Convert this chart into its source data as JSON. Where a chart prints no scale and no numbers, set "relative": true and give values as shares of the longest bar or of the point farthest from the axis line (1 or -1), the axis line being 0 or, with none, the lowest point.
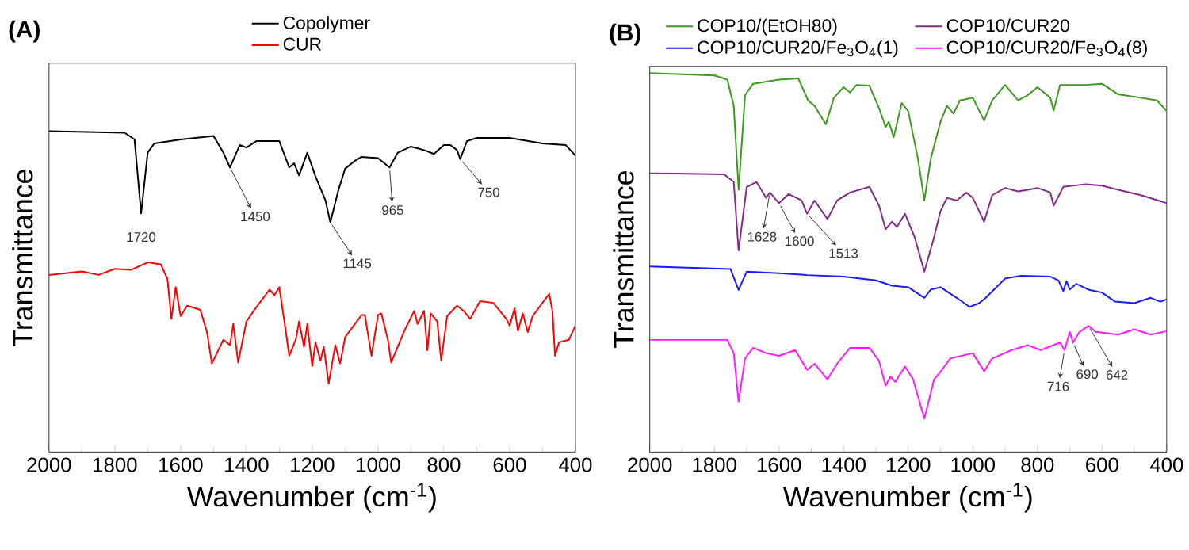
{
  "chart_data": [
    {
      "type": "line",
      "relative": true,
      "title": "(A)",
      "xlabel": "Wavenumber (cm$^{-1}$)",
      "ylabel": "Transmittance",
      "xlim": [
        2000,
        400
      ],
      "xticks": [
        2000,
        1800,
        1600,
        1400,
        1200,
        1000,
        800,
        600,
        400
      ],
      "legend": "top",
      "series": [
        {
          "name": "Copolymer",
          "color": "#000000",
          "x": [
            2000,
            1770,
            1740,
            1720,
            1700,
            1680,
            1600,
            1500,
            1470,
            1450,
            1420,
            1400,
            1370,
            1300,
            1270,
            1255,
            1240,
            1215,
            1190,
            1160,
            1145,
            1120,
            1100,
            1070,
            1050,
            1000,
            965,
            940,
            900,
            860,
            830,
            800,
            780,
            760,
            750,
            730,
            700,
            600,
            500,
            430,
            400
          ],
          "values": [
            1.0,
            0.995,
            0.974,
            0.744,
            0.933,
            0.962,
            0.974,
            0.985,
            0.933,
            0.887,
            0.957,
            0.949,
            0.969,
            0.969,
            0.887,
            0.9,
            0.862,
            0.933,
            0.859,
            0.785,
            0.716,
            0.818,
            0.883,
            0.908,
            0.92,
            0.916,
            0.887,
            0.933,
            0.952,
            0.941,
            0.929,
            0.957,
            0.957,
            0.941,
            0.913,
            0.969,
            0.979,
            0.979,
            0.962,
            0.957,
            0.924
          ]
        },
        {
          "name": "CUR",
          "color": "#ff0000",
          "x": [
            2000,
            1900,
            1850,
            1800,
            1750,
            1700,
            1660,
            1640,
            1628,
            1615,
            1600,
            1580,
            1540,
            1520,
            1505,
            1470,
            1450,
            1440,
            1425,
            1400,
            1380,
            1330,
            1315,
            1300,
            1280,
            1270,
            1250,
            1240,
            1225,
            1215,
            1200,
            1190,
            1175,
            1165,
            1150,
            1130,
            1115,
            1100,
            1050,
            1040,
            1020,
            1000,
            990,
            970,
            960,
            920,
            890,
            880,
            860,
            850,
            840,
            820,
            808,
            790,
            760,
            740,
            720,
            690,
            650,
            610,
            600,
            585,
            575,
            560,
            545,
            530,
            480,
            470,
            462,
            450,
            420,
            400
          ],
          "values": [
            0.552,
            0.563,
            0.552,
            0.571,
            0.568,
            0.591,
            0.585,
            0.539,
            0.415,
            0.514,
            0.424,
            0.456,
            0.443,
            0.374,
            0.276,
            0.35,
            0.333,
            0.399,
            0.279,
            0.407,
            0.437,
            0.506,
            0.489,
            0.514,
            0.374,
            0.3,
            0.35,
            0.407,
            0.328,
            0.399,
            0.268,
            0.342,
            0.284,
            0.328,
            0.213,
            0.333,
            0.276,
            0.358,
            0.427,
            0.427,
            0.3,
            0.427,
            0.432,
            0.35,
            0.279,
            0.378,
            0.44,
            0.399,
            0.44,
            0.317,
            0.432,
            0.407,
            0.284,
            0.424,
            0.456,
            0.44,
            0.415,
            0.47,
            0.465,
            0.415,
            0.394,
            0.448,
            0.378,
            0.432,
            0.374,
            0.424,
            0.493,
            0.44,
            0.3,
            0.342,
            0.35,
            0.394
          ]
        }
      ],
      "annotations": [
        {
          "text": "1720",
          "x": 1720,
          "y": 0.744
        },
        {
          "text": "1450",
          "x": 1450,
          "y": 0.887
        },
        {
          "text": "1145",
          "x": 1145,
          "y": 0.716
        },
        {
          "text": "965",
          "x": 965,
          "y": 0.887
        },
        {
          "text": "750",
          "x": 750,
          "y": 0.913
        }
      ]
    },
    {
      "type": "line",
      "relative": true,
      "title": "(B)",
      "xlabel": "Wavenumber (cm$^{-1}$)",
      "ylabel": "Transmittance",
      "xlim": [
        2000,
        400
      ],
      "xticks": [
        2000,
        1800,
        1600,
        1400,
        1200,
        1000,
        800,
        600,
        400
      ],
      "legend": "top",
      "series": [
        {
          "name": "COP10/(EtOH80)",
          "color": "#3c9a1e",
          "x": [
            2000,
            1800,
            1760,
            1740,
            1725,
            1705,
            1680,
            1600,
            1540,
            1510,
            1490,
            1455,
            1430,
            1400,
            1380,
            1360,
            1320,
            1290,
            1270,
            1260,
            1245,
            1220,
            1200,
            1170,
            1150,
            1130,
            1100,
            1080,
            1060,
            1040,
            1000,
            965,
            940,
            900,
            860,
            830,
            800,
            760,
            750,
            730,
            650,
            600,
            550,
            480,
            430,
            400
          ],
          "values": [
            1.0,
            0.994,
            0.983,
            0.914,
            0.692,
            0.942,
            0.972,
            0.983,
            0.986,
            0.928,
            0.914,
            0.865,
            0.935,
            0.963,
            0.949,
            0.969,
            0.967,
            0.907,
            0.858,
            0.872,
            0.831,
            0.921,
            0.9,
            0.775,
            0.664,
            0.775,
            0.872,
            0.914,
            0.893,
            0.928,
            0.935,
            0.875,
            0.928,
            0.969,
            0.928,
            0.942,
            0.963,
            0.935,
            0.901,
            0.969,
            0.969,
            0.972,
            0.944,
            0.935,
            0.928,
            0.9
          ]
        },
        {
          "name": "COP10/CUR20",
          "color": "#862a8a",
          "x": [
            2000,
            1770,
            1740,
            1725,
            1700,
            1670,
            1640,
            1628,
            1600,
            1570,
            1530,
            1513,
            1490,
            1450,
            1420,
            1380,
            1320,
            1290,
            1270,
            1250,
            1235,
            1210,
            1180,
            1150,
            1120,
            1100,
            1080,
            1050,
            1020,
            1000,
            965,
            940,
            900,
            860,
            830,
            800,
            760,
            750,
            720,
            650,
            600,
            550,
            480,
            400
          ],
          "values": [
            0.736,
            0.733,
            0.713,
            0.532,
            0.699,
            0.713,
            0.671,
            0.685,
            0.657,
            0.681,
            0.664,
            0.629,
            0.664,
            0.615,
            0.664,
            0.685,
            0.7,
            0.65,
            0.588,
            0.608,
            0.594,
            0.629,
            0.567,
            0.476,
            0.567,
            0.636,
            0.671,
            0.664,
            0.685,
            0.671,
            0.608,
            0.678,
            0.697,
            0.688,
            0.692,
            0.697,
            0.685,
            0.65,
            0.7,
            0.707,
            0.703,
            0.692,
            0.678,
            0.657
          ]
        },
        {
          "name": "COP10/CUR20/Fe$_{3}$O$_{4}$(1)",
          "color": "#1a1aff",
          "x": [
            2000,
            1750,
            1725,
            1700,
            1600,
            1513,
            1400,
            1300,
            1250,
            1200,
            1150,
            1130,
            1100,
            1050,
            1010,
            980,
            960,
            900,
            850,
            760,
            735,
            720,
            710,
            700,
            680,
            640,
            600,
            560,
            500,
            450,
            420,
            400
          ],
          "values": [
            0.49,
            0.483,
            0.428,
            0.476,
            0.472,
            0.467,
            0.463,
            0.453,
            0.439,
            0.435,
            0.407,
            0.429,
            0.435,
            0.407,
            0.383,
            0.393,
            0.407,
            0.458,
            0.465,
            0.463,
            0.453,
            0.425,
            0.451,
            0.429,
            0.444,
            0.428,
            0.421,
            0.397,
            0.393,
            0.407,
            0.397,
            0.403
          ]
        },
        {
          "name": "COP10/CUR20/Fe$_{3}$O$_{4}$(8)",
          "color": "#ff1aff",
          "x": [
            2000,
            1760,
            1740,
            1725,
            1705,
            1680,
            1640,
            1600,
            1550,
            1513,
            1490,
            1450,
            1420,
            1380,
            1320,
            1290,
            1270,
            1255,
            1240,
            1210,
            1185,
            1150,
            1120,
            1100,
            1070,
            1000,
            965,
            940,
            880,
            830,
            790,
            730,
            716,
            700,
            690,
            670,
            642,
            620,
            550,
            500,
            450,
            400
          ],
          "values": [
            0.296,
            0.296,
            0.261,
            0.133,
            0.247,
            0.275,
            0.261,
            0.254,
            0.269,
            0.217,
            0.233,
            0.192,
            0.233,
            0.275,
            0.275,
            0.24,
            0.175,
            0.199,
            0.185,
            0.226,
            0.192,
            0.088,
            0.192,
            0.212,
            0.247,
            0.261,
            0.213,
            0.247,
            0.269,
            0.282,
            0.269,
            0.289,
            0.269,
            0.317,
            0.289,
            0.317,
            0.333,
            0.317,
            0.31,
            0.324,
            0.31,
            0.319
          ]
        }
      ],
      "annotations": [
        {
          "text": "1628",
          "x": 1628,
          "y": 0.685
        },
        {
          "text": "1600",
          "x": 1600,
          "y": 0.657
        },
        {
          "text": "1513",
          "x": 1513,
          "y": 0.629
        },
        {
          "text": "716",
          "x": 716,
          "y": 0.269
        },
        {
          "text": "690",
          "x": 690,
          "y": 0.289
        },
        {
          "text": "642",
          "x": 642,
          "y": 0.333
        }
      ]
    }
  ]
}
